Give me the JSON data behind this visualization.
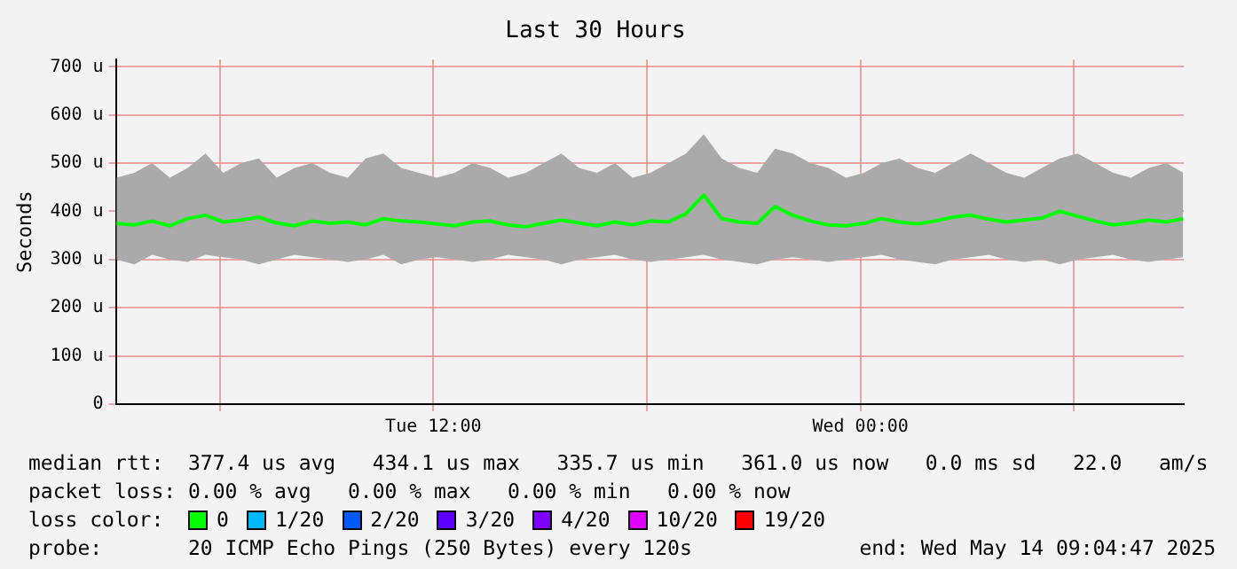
{
  "chart_data": {
    "type": "line",
    "title": "Last 30 Hours",
    "ylabel": "Seconds",
    "legend_title": "loss color:",
    "legend": "bottom",
    "grid": true,
    "marker": "none",
    "line_style": "solid",
    "x": [
      "2025-05-13T03:06",
      "2025-05-13T03:36",
      "2025-05-13T04:06",
      "2025-05-13T04:36",
      "2025-05-13T05:06",
      "2025-05-13T05:36",
      "2025-05-13T06:06",
      "2025-05-13T06:36",
      "2025-05-13T07:06",
      "2025-05-13T07:36",
      "2025-05-13T08:06",
      "2025-05-13T08:36",
      "2025-05-13T09:06",
      "2025-05-13T09:36",
      "2025-05-13T10:06",
      "2025-05-13T10:36",
      "2025-05-13T11:06",
      "2025-05-13T11:36",
      "2025-05-13T12:06",
      "2025-05-13T12:36",
      "2025-05-13T13:06",
      "2025-05-13T13:36",
      "2025-05-13T14:06",
      "2025-05-13T14:36",
      "2025-05-13T15:06",
      "2025-05-13T15:36",
      "2025-05-13T16:06",
      "2025-05-13T16:36",
      "2025-05-13T17:06",
      "2025-05-13T17:36",
      "2025-05-13T18:06",
      "2025-05-13T18:36",
      "2025-05-13T19:06",
      "2025-05-13T19:36",
      "2025-05-13T20:06",
      "2025-05-13T20:36",
      "2025-05-13T21:06",
      "2025-05-13T21:36",
      "2025-05-13T22:06",
      "2025-05-13T22:36",
      "2025-05-13T23:06",
      "2025-05-13T23:36",
      "2025-05-14T00:06",
      "2025-05-14T00:36",
      "2025-05-14T01:06",
      "2025-05-14T01:36",
      "2025-05-14T02:06",
      "2025-05-14T02:36",
      "2025-05-14T03:06",
      "2025-05-14T03:36",
      "2025-05-14T04:06",
      "2025-05-14T04:36",
      "2025-05-14T05:06",
      "2025-05-14T05:36",
      "2025-05-14T06:06",
      "2025-05-14T06:36",
      "2025-05-14T07:06",
      "2025-05-14T07:36",
      "2025-05-14T08:06",
      "2025-05-14T08:36",
      "2025-05-14T09:04"
    ],
    "xlim": [
      "2025-05-13T03:05",
      "2025-05-14T09:05"
    ],
    "xticks": [
      {
        "value": "2025-05-13T06:00",
        "label": null
      },
      {
        "value": "2025-05-13T12:00",
        "label": "Tue 12:00"
      },
      {
        "value": "2025-05-13T18:00",
        "label": null
      },
      {
        "value": "2025-05-14T00:00",
        "label": "Wed 00:00"
      },
      {
        "value": "2025-05-14T06:00",
        "label": null
      }
    ],
    "ylim": [
      0,
      715
    ],
    "yticks": [
      {
        "value": 0,
        "label": "0"
      },
      {
        "value": 100,
        "label": "100 u"
      },
      {
        "value": 200,
        "label": "200 u"
      },
      {
        "value": 300,
        "label": "300 u"
      },
      {
        "value": 400,
        "label": "400 u"
      },
      {
        "value": 500,
        "label": "500 u"
      },
      {
        "value": 600,
        "label": "600 u"
      },
      {
        "value": 700,
        "label": "700 u"
      }
    ],
    "series": [
      {
        "name": "0",
        "color": "#00ff00",
        "values": [
          375,
          372,
          380,
          370,
          385,
          392,
          378,
          382,
          388,
          376,
          370,
          380,
          375,
          378,
          372,
          385,
          380,
          378,
          374,
          370,
          378,
          380,
          372,
          368,
          375,
          382,
          376,
          370,
          378,
          372,
          380,
          378,
          395,
          434,
          385,
          378,
          375,
          410,
          392,
          380,
          372,
          370,
          375,
          385,
          378,
          374,
          380,
          388,
          392,
          384,
          378,
          382,
          386,
          400,
          390,
          380,
          372,
          376,
          382,
          378,
          385
        ],
        "upper": [
          470,
          480,
          500,
          470,
          490,
          520,
          480,
          500,
          510,
          470,
          490,
          500,
          480,
          470,
          510,
          520,
          490,
          480,
          470,
          480,
          500,
          490,
          470,
          480,
          500,
          520,
          490,
          480,
          500,
          470,
          480,
          500,
          520,
          560,
          510,
          490,
          480,
          530,
          520,
          500,
          490,
          470,
          480,
          500,
          510,
          490,
          480,
          500,
          520,
          500,
          480,
          470,
          490,
          510,
          520,
          500,
          480,
          470,
          490,
          500,
          480
        ],
        "lower": [
          300,
          290,
          310,
          300,
          295,
          310,
          305,
          300,
          290,
          300,
          310,
          305,
          300,
          295,
          300,
          310,
          290,
          300,
          305,
          300,
          295,
          300,
          310,
          305,
          300,
          290,
          300,
          305,
          310,
          300,
          295,
          300,
          305,
          310,
          300,
          295,
          290,
          300,
          305,
          300,
          295,
          300,
          305,
          310,
          300,
          295,
          290,
          300,
          305,
          310,
          300,
          295,
          300,
          290,
          300,
          305,
          310,
          300,
          295,
          300,
          305
        ]
      },
      {
        "name": "1/20",
        "color": "#00b8ff",
        "values": [
          null,
          null,
          null,
          null,
          null,
          null,
          null,
          null,
          null,
          null,
          null,
          null,
          null,
          null,
          null,
          null,
          null,
          null,
          null,
          null,
          null,
          null,
          null,
          null,
          null,
          null,
          null,
          null,
          null,
          null,
          null,
          null,
          null,
          null,
          null,
          null,
          null,
          null,
          null,
          null,
          null,
          null,
          null,
          null,
          null,
          null,
          null,
          null,
          null,
          null,
          null,
          null,
          null,
          null,
          null,
          null,
          null,
          null,
          null,
          null,
          null
        ]
      },
      {
        "name": "2/20",
        "color": "#0059ff",
        "values": [
          null,
          null,
          null,
          null,
          null,
          null,
          null,
          null,
          null,
          null,
          null,
          null,
          null,
          null,
          null,
          null,
          null,
          null,
          null,
          null,
          null,
          null,
          null,
          null,
          null,
          null,
          null,
          null,
          null,
          null,
          null,
          null,
          null,
          null,
          null,
          null,
          null,
          null,
          null,
          null,
          null,
          null,
          null,
          null,
          null,
          null,
          null,
          null,
          null,
          null,
          null,
          null,
          null,
          null,
          null,
          null,
          null,
          null,
          null,
          null,
          null
        ]
      },
      {
        "name": "3/20",
        "color": "#5e00ff",
        "values": [
          null,
          null,
          null,
          null,
          null,
          null,
          null,
          null,
          null,
          null,
          null,
          null,
          null,
          null,
          null,
          null,
          null,
          null,
          null,
          null,
          null,
          null,
          null,
          null,
          null,
          null,
          null,
          null,
          null,
          null,
          null,
          null,
          null,
          null,
          null,
          null,
          null,
          null,
          null,
          null,
          null,
          null,
          null,
          null,
          null,
          null,
          null,
          null,
          null,
          null,
          null,
          null,
          null,
          null,
          null,
          null,
          null,
          null,
          null,
          null,
          null
        ]
      },
      {
        "name": "4/20",
        "color": "#7e00ff",
        "values": [
          null,
          null,
          null,
          null,
          null,
          null,
          null,
          null,
          null,
          null,
          null,
          null,
          null,
          null,
          null,
          null,
          null,
          null,
          null,
          null,
          null,
          null,
          null,
          null,
          null,
          null,
          null,
          null,
          null,
          null,
          null,
          null,
          null,
          null,
          null,
          null,
          null,
          null,
          null,
          null,
          null,
          null,
          null,
          null,
          null,
          null,
          null,
          null,
          null,
          null,
          null,
          null,
          null,
          null,
          null,
          null,
          null,
          null,
          null,
          null,
          null
        ]
      },
      {
        "name": "10/20",
        "color": "#dd00ff",
        "values": [
          null,
          null,
          null,
          null,
          null,
          null,
          null,
          null,
          null,
          null,
          null,
          null,
          null,
          null,
          null,
          null,
          null,
          null,
          null,
          null,
          null,
          null,
          null,
          null,
          null,
          null,
          null,
          null,
          null,
          null,
          null,
          null,
          null,
          null,
          null,
          null,
          null,
          null,
          null,
          null,
          null,
          null,
          null,
          null,
          null,
          null,
          null,
          null,
          null,
          null,
          null,
          null,
          null,
          null,
          null,
          null,
          null,
          null,
          null,
          null,
          null
        ]
      },
      {
        "name": "19/20",
        "color": "#ff0000",
        "values": [
          null,
          null,
          null,
          null,
          null,
          null,
          null,
          null,
          null,
          null,
          null,
          null,
          null,
          null,
          null,
          null,
          null,
          null,
          null,
          null,
          null,
          null,
          null,
          null,
          null,
          null,
          null,
          null,
          null,
          null,
          null,
          null,
          null,
          null,
          null,
          null,
          null,
          null,
          null,
          null,
          null,
          null,
          null,
          null,
          null,
          null,
          null,
          null,
          null,
          null,
          null,
          null,
          null,
          null,
          null,
          null,
          null,
          null,
          null,
          null,
          null
        ]
      }
    ],
    "annotations": [
      "median rtt:  377.4 us avg   434.1 us max   335.7 us min   361.0 us now   0.0 ms sd   22.0   am/s",
      "packet loss: 0.00 % avg   0.00 % max   0.00 % min   0.00 % now",
      "probe:       20 ICMP Echo Pings (250 Bytes) every 120s",
      "end: Wed May 14 09:04:47 2025"
    ]
  }
}
